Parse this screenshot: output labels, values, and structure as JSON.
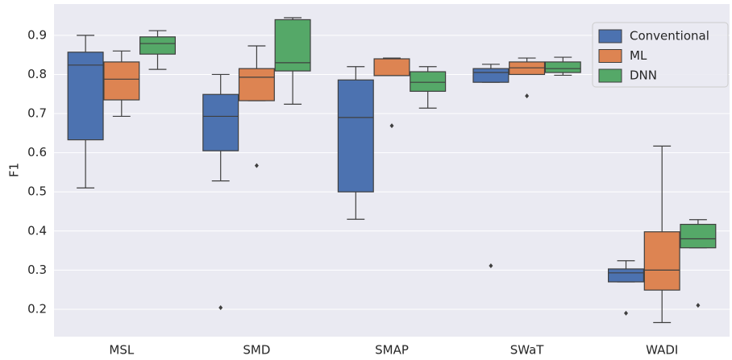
{
  "chart_data": {
    "type": "boxplot",
    "y_label": "F1",
    "categories": [
      "MSL",
      "SMD",
      "SMAP",
      "SWaT",
      "WADI"
    ],
    "ylim": [
      0.13,
      0.98
    ],
    "yticks": [
      0.2,
      0.3,
      0.4,
      0.5,
      0.6,
      0.7,
      0.8,
      0.9
    ],
    "grid": true,
    "legend": "upper-right",
    "series": [
      {
        "name": "Conventional",
        "color": "#4c72b0",
        "boxes": [
          {
            "low": 0.51,
            "q1": 0.633,
            "median": 0.824,
            "q3": 0.857,
            "high": 0.9,
            "outliers": []
          },
          {
            "low": 0.528,
            "q1": 0.605,
            "median": 0.693,
            "q3": 0.749,
            "high": 0.8,
            "outliers": [
              0.204
            ]
          },
          {
            "low": 0.43,
            "q1": 0.5,
            "median": 0.69,
            "q3": 0.786,
            "high": 0.82,
            "outliers": []
          },
          {
            "low": 0.78,
            "q1": 0.78,
            "median": 0.805,
            "q3": 0.815,
            "high": 0.826,
            "outliers": [
              0.311
            ]
          },
          {
            "low": 0.27,
            "q1": 0.27,
            "median": 0.293,
            "q3": 0.303,
            "high": 0.324,
            "outliers": [
              0.19
            ]
          }
        ]
      },
      {
        "name": "ML",
        "color": "#dd8452",
        "boxes": [
          {
            "low": 0.693,
            "q1": 0.735,
            "median": 0.788,
            "q3": 0.832,
            "high": 0.86,
            "outliers": []
          },
          {
            "low": 0.733,
            "q1": 0.733,
            "median": 0.793,
            "q3": 0.815,
            "high": 0.873,
            "outliers": [
              0.567
            ]
          },
          {
            "low": 0.797,
            "q1": 0.797,
            "median": 0.797,
            "q3": 0.84,
            "high": 0.842,
            "outliers": [
              0.669
            ]
          },
          {
            "low": 0.8,
            "q1": 0.8,
            "median": 0.817,
            "q3": 0.832,
            "high": 0.842,
            "outliers": [
              0.745
            ]
          },
          {
            "low": 0.166,
            "q1": 0.249,
            "median": 0.3,
            "q3": 0.398,
            "high": 0.617,
            "outliers": []
          }
        ]
      },
      {
        "name": "DNN",
        "color": "#55a868",
        "boxes": [
          {
            "low": 0.813,
            "q1": 0.852,
            "median": 0.879,
            "q3": 0.896,
            "high": 0.912,
            "outliers": []
          },
          {
            "low": 0.724,
            "q1": 0.809,
            "median": 0.83,
            "q3": 0.94,
            "high": 0.945,
            "outliers": []
          },
          {
            "low": 0.714,
            "q1": 0.757,
            "median": 0.78,
            "q3": 0.807,
            "high": 0.82,
            "outliers": []
          },
          {
            "low": 0.798,
            "q1": 0.805,
            "median": 0.815,
            "q3": 0.832,
            "high": 0.844,
            "outliers": []
          },
          {
            "low": 0.357,
            "q1": 0.357,
            "median": 0.38,
            "q3": 0.417,
            "high": 0.429,
            "outliers": [
              0.21
            ]
          }
        ]
      }
    ]
  }
}
